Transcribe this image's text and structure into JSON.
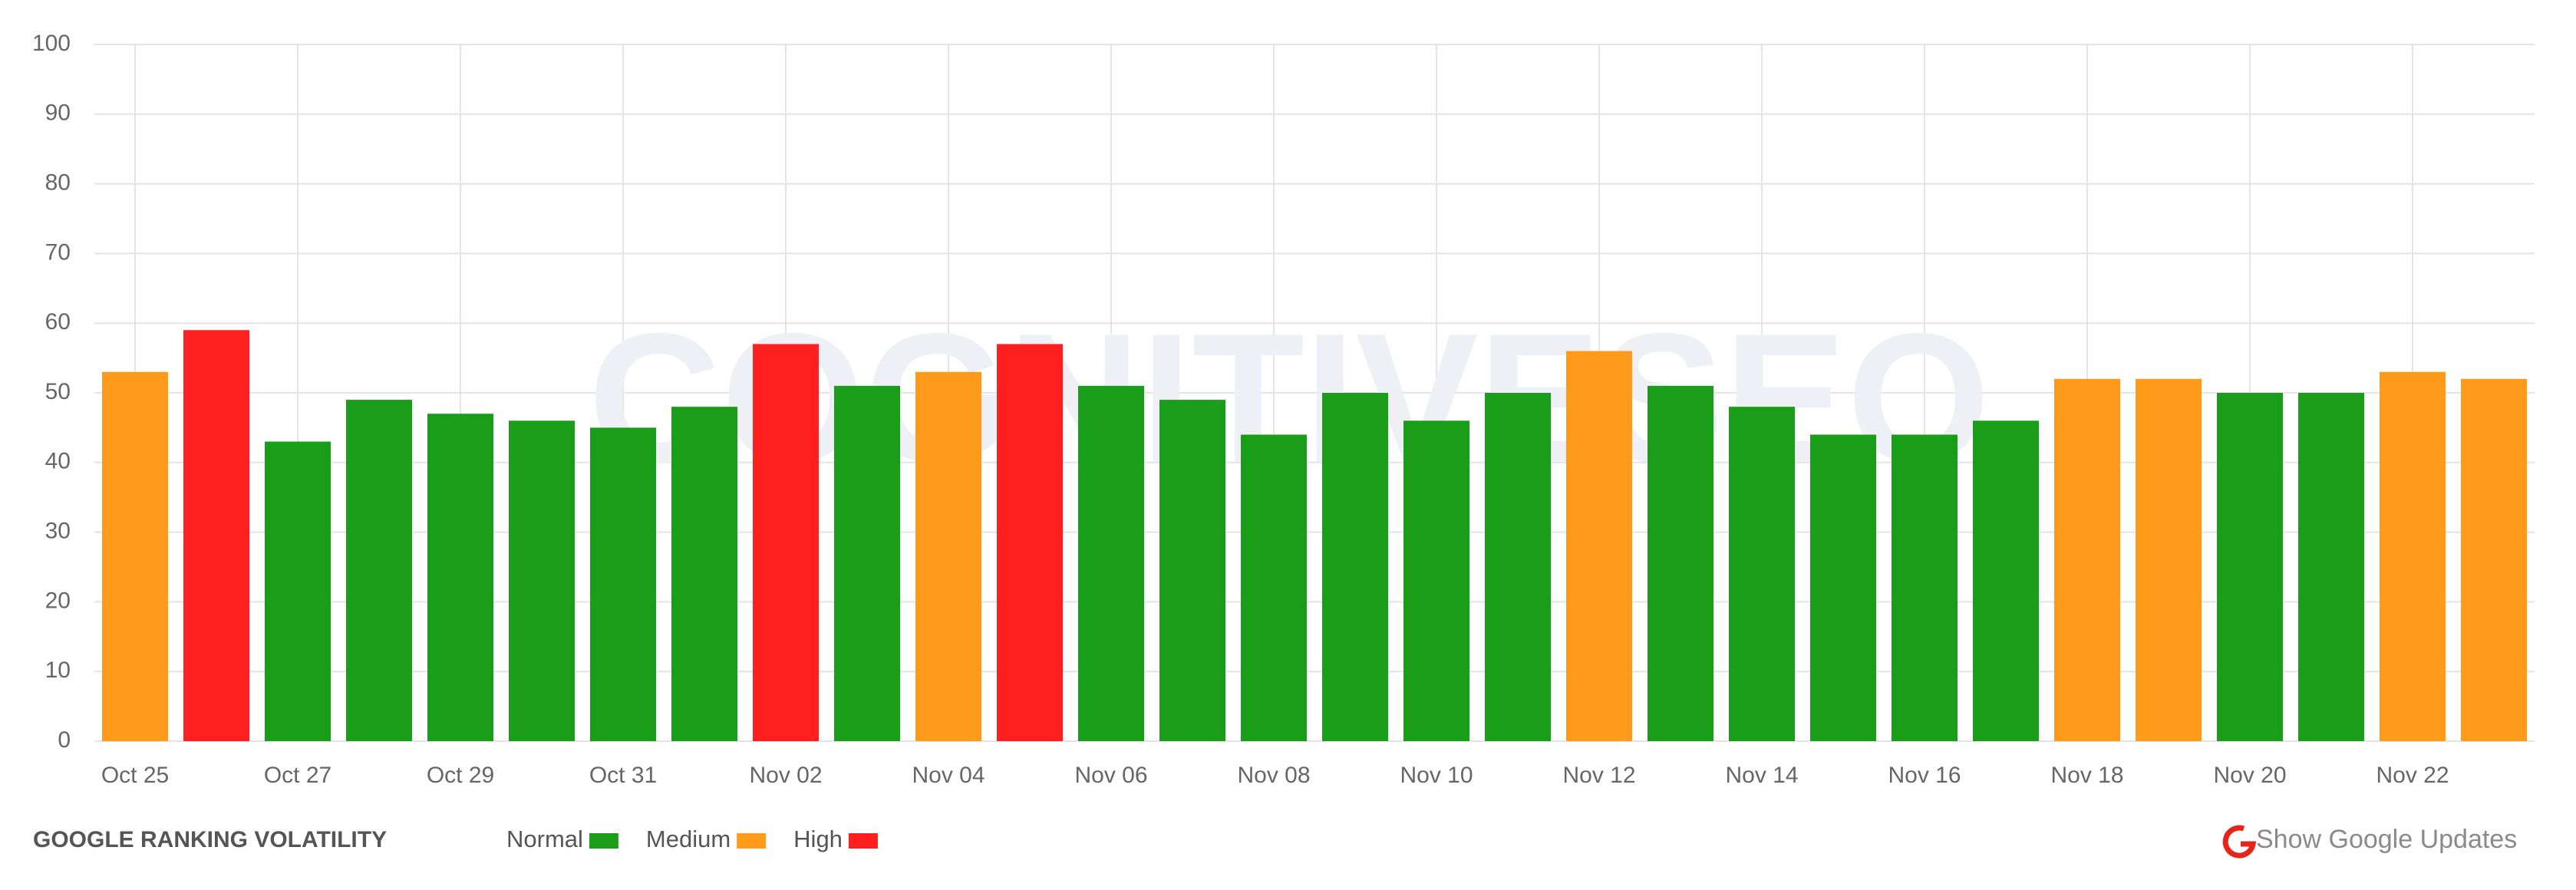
{
  "chart_data": {
    "type": "bar",
    "title": "GOOGLE RANKING VOLATILITY",
    "watermark": "COGNITIVESEO",
    "button": "Show Google Updates",
    "categories": [
      "Oct 25",
      null,
      "Oct 27",
      null,
      "Oct 29",
      null,
      "Oct 31",
      null,
      "Nov 02",
      null,
      "Nov 04",
      null,
      "Nov 06",
      null,
      "Nov 08",
      null,
      "Nov 10",
      null,
      "Nov 12",
      null,
      "Nov 14",
      null,
      "Nov 16",
      null,
      "Nov 18",
      null,
      "Nov 20",
      null,
      "Nov 22",
      null
    ],
    "values": [
      53,
      59,
      43,
      49,
      47,
      46,
      45,
      48,
      57,
      51,
      53,
      57,
      51,
      49,
      44,
      50,
      46,
      50,
      56,
      51,
      48,
      44,
      44,
      46,
      52,
      52,
      50,
      50,
      53,
      52
    ],
    "colors": [
      "#ff9a1a",
      "#ff1f1f",
      "#1a9e1a",
      "#1a9e1a",
      "#1a9e1a",
      "#1a9e1a",
      "#1a9e1a",
      "#1a9e1a",
      "#ff1f1f",
      "#1a9e1a",
      "#ff9a1a",
      "#ff1f1f",
      "#1a9e1a",
      "#1a9e1a",
      "#1a9e1a",
      "#1a9e1a",
      "#1a9e1a",
      "#1a9e1a",
      "#ff9a1a",
      "#1a9e1a",
      "#1a9e1a",
      "#1a9e1a",
      "#1a9e1a",
      "#1a9e1a",
      "#ff9a1a",
      "#ff9a1a",
      "#1a9e1a",
      "#1a9e1a",
      "#ff9a1a",
      "#ff9a1a"
    ],
    "legend": [
      {
        "name": "Normal",
        "color": "#1a9e1a"
      },
      {
        "name": "Medium",
        "color": "#ff9a1a"
      },
      {
        "name": "High",
        "color": "#ff1f1f"
      }
    ],
    "ylim": [
      0,
      100
    ],
    "yticks": [
      0,
      10,
      20,
      30,
      40,
      50,
      60,
      70,
      80,
      90,
      100
    ],
    "grid": true
  }
}
